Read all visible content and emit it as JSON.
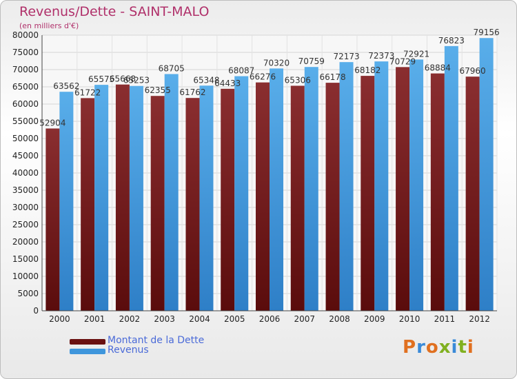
{
  "header": {
    "title": "Revenus/Dette - SAINT-MALO",
    "subtitle": "(en milliers d'€)"
  },
  "legend": {
    "debt_label": "Montant de la Dette",
    "revenue_label": "Revenus"
  },
  "logo": {
    "text": "Proxiti"
  },
  "colors": {
    "debt": "#7a1c1e",
    "revenue": "#3f96dc",
    "title": "#b0306a",
    "legend_text": "#4a6ad8"
  },
  "chart_data": {
    "type": "bar",
    "title": "Revenus/Dette - SAINT-MALO",
    "ylabel": "(en milliers d'€)",
    "ylim": [
      0,
      80000
    ],
    "yticks": [
      0,
      5000,
      10000,
      15000,
      20000,
      25000,
      30000,
      35000,
      40000,
      45000,
      50000,
      55000,
      60000,
      65000,
      70000,
      75000,
      80000
    ],
    "grid": true,
    "legend_position": "bottom-left",
    "categories": [
      "2000",
      "2001",
      "2002",
      "2003",
      "2004",
      "2005",
      "2006",
      "2007",
      "2008",
      "2009",
      "2010",
      "2011",
      "2012"
    ],
    "series": [
      {
        "name": "Montant de la Dette",
        "values": [
          52904,
          61722,
          65668,
          62355,
          61762,
          64433,
          66276,
          65306,
          66178,
          68182,
          70729,
          68884,
          67960
        ],
        "labels": [
          "52904",
          "61722",
          "65668",
          "62355",
          "61762",
          "64433",
          "66276",
          "65306",
          "66178",
          "68182",
          "70729",
          "68884",
          "67960"
        ]
      },
      {
        "name": "Revenus",
        "values": [
          63562,
          65575,
          65253,
          68705,
          65348,
          68087,
          70320,
          70759,
          72173,
          72373,
          72921,
          76823,
          79156
        ],
        "labels": [
          "63562",
          "65575",
          "65253",
          "68705",
          "65348",
          "68087",
          "70320",
          "70759",
          "72173",
          "72373",
          "72921",
          "76823",
          "79156"
        ]
      }
    ]
  }
}
